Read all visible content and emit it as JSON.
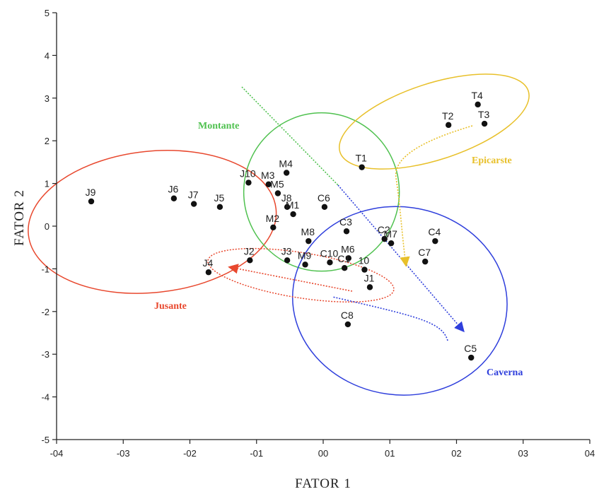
{
  "chart_data": {
    "type": "scatter",
    "xlabel": "FATOR 1",
    "ylabel": "FATOR 2",
    "xlim": [
      -0.4,
      0.4
    ],
    "ylim": [
      -5,
      5
    ],
    "x_ticks": [
      {
        "value": -0.4,
        "label": "-04"
      },
      {
        "value": -0.3,
        "label": "-03"
      },
      {
        "value": -0.2,
        "label": "-02"
      },
      {
        "value": -0.1,
        "label": "-01"
      },
      {
        "value": 0.0,
        "label": "00"
      },
      {
        "value": 0.1,
        "label": "01"
      },
      {
        "value": 0.2,
        "label": "02"
      },
      {
        "value": 0.3,
        "label": "03"
      },
      {
        "value": 0.4,
        "label": "04"
      }
    ],
    "y_ticks": [
      {
        "value": 5,
        "label": "5"
      },
      {
        "value": 4,
        "label": "4"
      },
      {
        "value": 3,
        "label": "3"
      },
      {
        "value": 2,
        "label": "2"
      },
      {
        "value": 1,
        "label": "1"
      },
      {
        "value": 0,
        "label": "0"
      },
      {
        "value": -1,
        "label": "-1"
      },
      {
        "value": -2,
        "label": "-2"
      },
      {
        "value": -3,
        "label": "-3"
      },
      {
        "value": -4,
        "label": "-4"
      },
      {
        "value": -5,
        "label": "-5"
      }
    ],
    "grid": false,
    "points": [
      {
        "label": "T4",
        "x": 0.232,
        "y": 2.85
      },
      {
        "label": "T2",
        "x": 0.188,
        "y": 2.37
      },
      {
        "label": "T3",
        "x": 0.242,
        "y": 2.4
      },
      {
        "label": "T1",
        "x": 0.058,
        "y": 1.38
      },
      {
        "label": "J10",
        "x": -0.112,
        "y": 1.02
      },
      {
        "label": "M4",
        "x": -0.055,
        "y": 1.25
      },
      {
        "label": "M3",
        "x": -0.082,
        "y": 0.98
      },
      {
        "label": "M5",
        "x": -0.068,
        "y": 0.77
      },
      {
        "label": "J8",
        "x": -0.054,
        "y": 0.45
      },
      {
        "label": "M1",
        "x": -0.045,
        "y": 0.28
      },
      {
        "label": "M2",
        "x": -0.075,
        "y": -0.03
      },
      {
        "label": "J9",
        "x": -0.348,
        "y": 0.58
      },
      {
        "label": "J6",
        "x": -0.224,
        "y": 0.65
      },
      {
        "label": "J7",
        "x": -0.194,
        "y": 0.52
      },
      {
        "label": "J5",
        "x": -0.155,
        "y": 0.45
      },
      {
        "label": "C6",
        "x": 0.002,
        "y": 0.45
      },
      {
        "label": "C3",
        "x": 0.035,
        "y": -0.12
      },
      {
        "label": "C2",
        "x": 0.092,
        "y": -0.3
      },
      {
        "label": "M7",
        "x": 0.102,
        "y": -0.4
      },
      {
        "label": "C4",
        "x": 0.168,
        "y": -0.35
      },
      {
        "label": "M8",
        "x": -0.022,
        "y": -0.35
      },
      {
        "label": "J2",
        "x": -0.11,
        "y": -0.8
      },
      {
        "label": "J3",
        "x": -0.054,
        "y": -0.8
      },
      {
        "label": "M9",
        "x": -0.027,
        "y": -0.9
      },
      {
        "label": "C10",
        "x": 0.01,
        "y": -0.85
      },
      {
        "label": "M6",
        "x": 0.038,
        "y": -0.75
      },
      {
        "label": "C1",
        "x": 0.032,
        "y": -0.98
      },
      {
        "label": "10",
        "x": 0.062,
        "y": -1.02
      },
      {
        "label": "J1",
        "x": 0.07,
        "y": -1.43
      },
      {
        "label": "C7",
        "x": 0.153,
        "y": -0.83
      },
      {
        "label": "J4",
        "x": -0.172,
        "y": -1.08
      },
      {
        "label": "C8",
        "x": 0.037,
        "y": -2.3
      },
      {
        "label": "C5",
        "x": 0.222,
        "y": -3.08
      }
    ],
    "groups": [
      {
        "name": "Montante",
        "color": "#4fc14f"
      },
      {
        "name": "Epicarste",
        "color": "#e8c02a"
      },
      {
        "name": "Jusante",
        "color": "#e8482e"
      },
      {
        "name": "Caverna",
        "color": "#2f3fdc"
      }
    ]
  }
}
